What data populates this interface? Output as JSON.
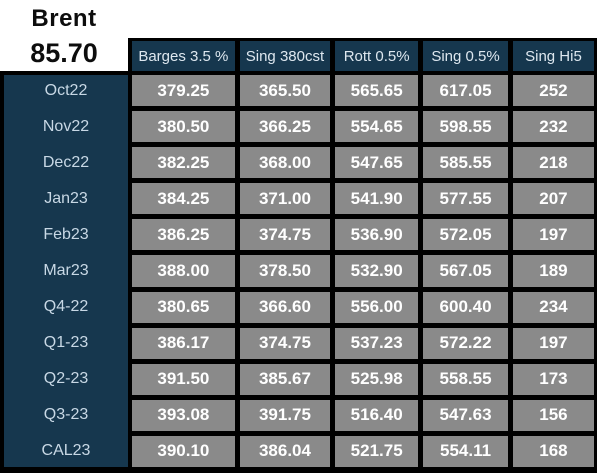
{
  "brent": {
    "label": "Brent",
    "value": "85.70"
  },
  "table": {
    "columns": [
      "Barges 3.5 %",
      "Sing 380cst",
      "Rott 0.5%",
      "Sing 0.5%",
      "Sing Hi5"
    ],
    "rows": [
      {
        "label": "Oct22",
        "values": [
          "379.25",
          "365.50",
          "565.65",
          "617.05",
          "252"
        ]
      },
      {
        "label": "Nov22",
        "values": [
          "380.50",
          "366.25",
          "554.65",
          "598.55",
          "232"
        ]
      },
      {
        "label": "Dec22",
        "values": [
          "382.25",
          "368.00",
          "547.65",
          "585.55",
          "218"
        ]
      },
      {
        "label": "Jan23",
        "values": [
          "384.25",
          "371.00",
          "541.90",
          "577.55",
          "207"
        ]
      },
      {
        "label": "Feb23",
        "values": [
          "386.25",
          "374.75",
          "536.90",
          "572.05",
          "197"
        ]
      },
      {
        "label": "Mar23",
        "values": [
          "388.00",
          "378.50",
          "532.90",
          "567.05",
          "189"
        ]
      },
      {
        "label": "Q4-22",
        "values": [
          "380.65",
          "366.60",
          "556.00",
          "600.40",
          "234"
        ]
      },
      {
        "label": "Q1-23",
        "values": [
          "386.17",
          "374.75",
          "537.23",
          "572.22",
          "197"
        ]
      },
      {
        "label": "Q2-23",
        "values": [
          "391.50",
          "385.67",
          "525.98",
          "558.55",
          "173"
        ]
      },
      {
        "label": "Q3-23",
        "values": [
          "393.08",
          "391.75",
          "516.40",
          "547.63",
          "156"
        ]
      },
      {
        "label": "CAL23",
        "values": [
          "390.10",
          "386.04",
          "521.75",
          "554.11",
          "168"
        ]
      }
    ]
  },
  "chart_data": {
    "type": "table",
    "title": "Brent",
    "reference_label": "Brent",
    "reference_value": 85.7,
    "columns": [
      "Barges 3.5 %",
      "Sing 380cst",
      "Rott 0.5%",
      "Sing 0.5%",
      "Sing Hi5"
    ],
    "row_labels": [
      "Oct22",
      "Nov22",
      "Dec22",
      "Jan23",
      "Feb23",
      "Mar23",
      "Q4-22",
      "Q1-23",
      "Q2-23",
      "Q3-23",
      "CAL23"
    ],
    "rows": [
      [
        379.25,
        365.5,
        565.65,
        617.05,
        252
      ],
      [
        380.5,
        366.25,
        554.65,
        598.55,
        232
      ],
      [
        382.25,
        368.0,
        547.65,
        585.55,
        218
      ],
      [
        384.25,
        371.0,
        541.9,
        577.55,
        207
      ],
      [
        386.25,
        374.75,
        536.9,
        572.05,
        197
      ],
      [
        388.0,
        378.5,
        532.9,
        567.05,
        189
      ],
      [
        380.65,
        366.6,
        556.0,
        600.4,
        234
      ],
      [
        386.17,
        374.75,
        537.23,
        572.22,
        197
      ],
      [
        391.5,
        385.67,
        525.98,
        558.55,
        173
      ],
      [
        393.08,
        391.75,
        516.4,
        547.63,
        156
      ],
      [
        390.1,
        386.04,
        521.75,
        554.11,
        168
      ]
    ]
  },
  "colors": {
    "header_bg": "#16374e",
    "cell_bg": "#8a8a8a",
    "border": "#000000",
    "header_text": "#dde7ef",
    "label_text": "#c8d8e5",
    "value_text": "#ffffff"
  }
}
